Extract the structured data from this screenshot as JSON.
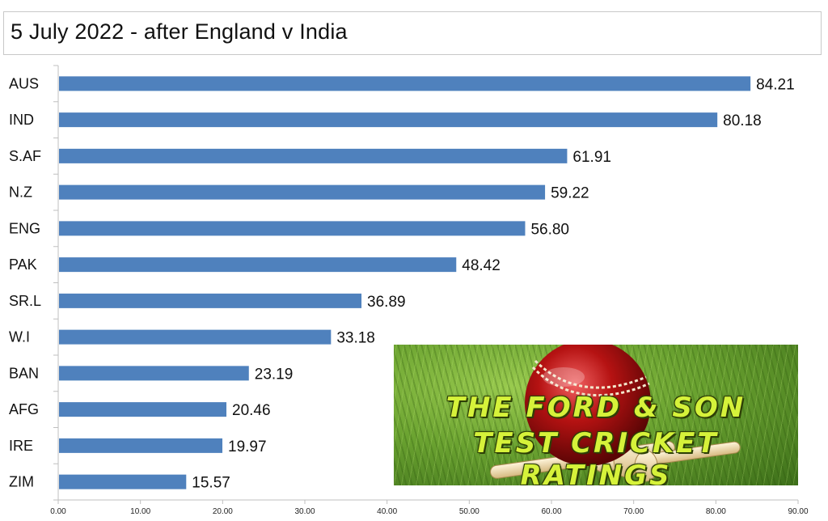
{
  "title": "5 July 2022 - after England v India",
  "promo": {
    "line1": "THE FORD & SON",
    "line2": "TEST CRICKET RATINGS"
  },
  "chart_data": {
    "type": "bar",
    "orientation": "horizontal",
    "title": "5 July 2022 - after England v India",
    "categories": [
      "AUS",
      "IND",
      "S.AF",
      "N.Z",
      "ENG",
      "PAK",
      "SR.L",
      "W.I",
      "BAN",
      "AFG",
      "IRE",
      "ZIM"
    ],
    "values": [
      84.21,
      80.18,
      61.91,
      59.22,
      56.8,
      48.42,
      36.89,
      33.18,
      23.19,
      20.46,
      19.97,
      15.57
    ],
    "value_labels": [
      "84.21",
      "80.18",
      "61.91",
      "59.22",
      "56.80",
      "48.42",
      "36.89",
      "33.18",
      "23.19",
      "20.46",
      "19.97",
      "15.57"
    ],
    "xlim": [
      0,
      90
    ],
    "x_ticks": [
      "0.00",
      "10.00",
      "20.00",
      "30.00",
      "40.00",
      "50.00",
      "60.00",
      "70.00",
      "80.00",
      "90.00"
    ],
    "xlabel": "",
    "ylabel": "",
    "grid": false,
    "bar_color": "#4f81bd"
  }
}
